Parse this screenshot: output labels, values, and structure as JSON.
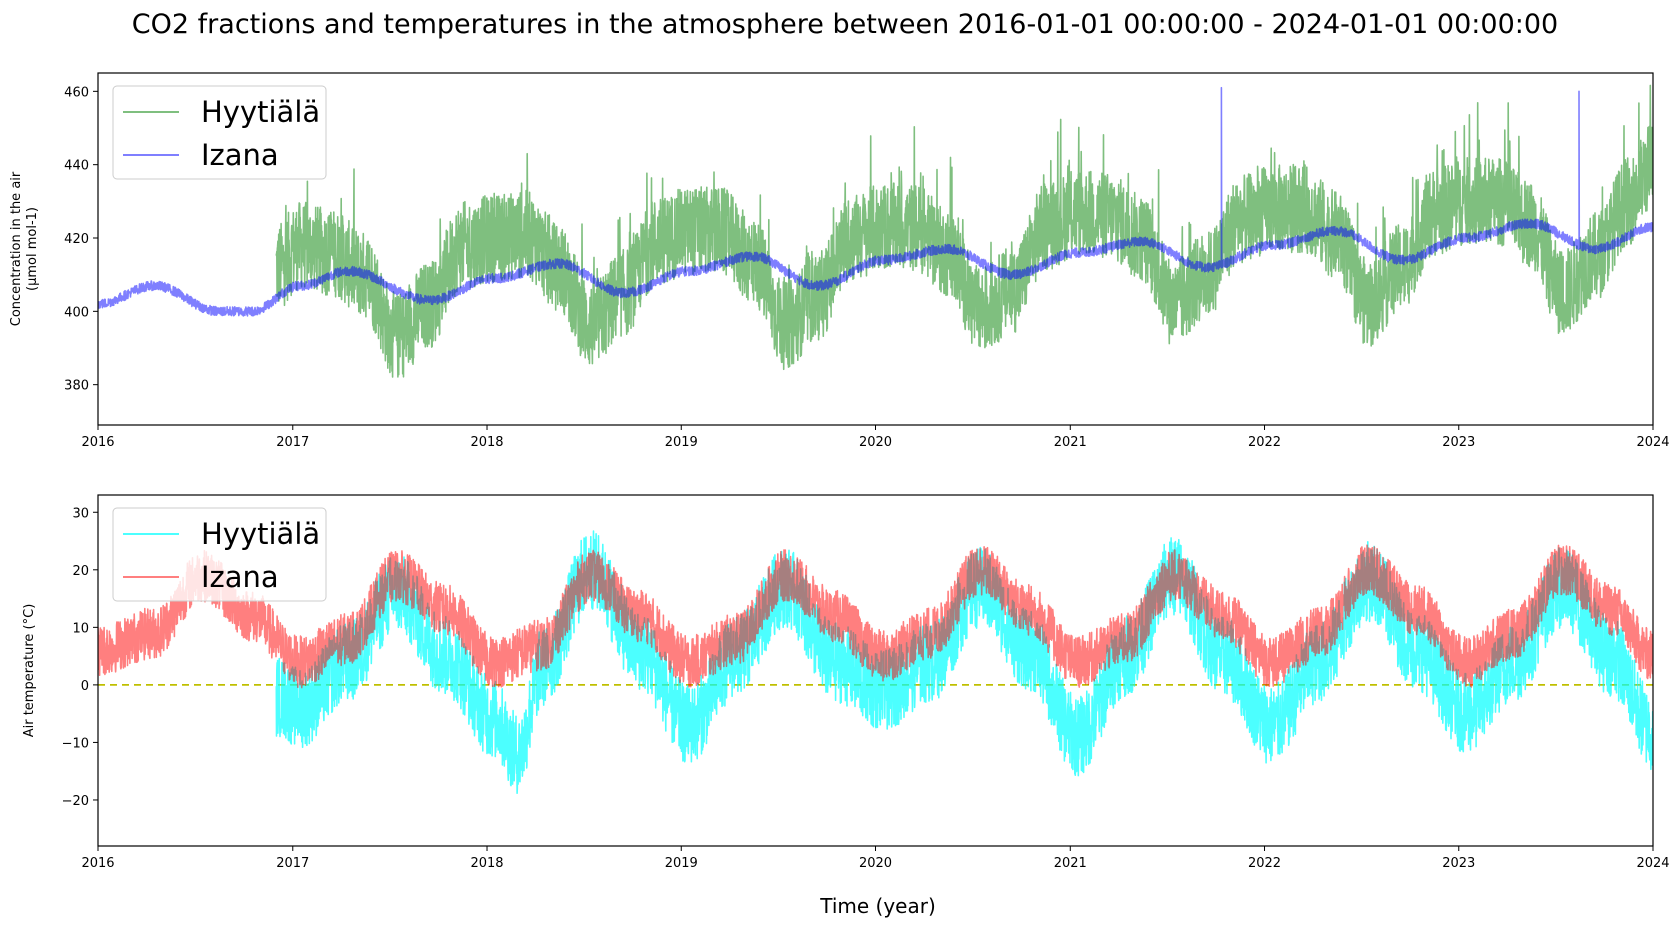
{
  "figure": {
    "title": "CO2 fractions and temperatures in the atmosphere between 2016-01-01 00:00:00 - 2024-01-01 00:00:00",
    "xlabel": "Time (year)"
  },
  "chart_data": [
    {
      "type": "line",
      "ylabel_line1": "Concentration in the air",
      "ylabel_line2": "(µmol mol-1)",
      "xlim": [
        "2016-01-01",
        "2024-01-01"
      ],
      "ylim": [
        369,
        465
      ],
      "x_ticks": [
        "2016",
        "2017",
        "2018",
        "2019",
        "2020",
        "2021",
        "2022",
        "2023",
        "2024"
      ],
      "y_ticks": [
        380,
        400,
        420,
        440,
        460
      ],
      "legend": "top-left",
      "grid": false,
      "series": [
        {
          "name": "Hyytiälä",
          "color": "#008000",
          "opacity": 0.5,
          "start": "2016-12-01",
          "end": "2024-01-01",
          "trend": {
            "2016-12-01": 411,
            "2024-01-01": 427
          },
          "seasonal": {
            "winter_anomaly": 7,
            "summer_anomaly": -17
          },
          "daily_range_max": 24,
          "data": [
            [
              "2016-12-01",
              412
            ],
            [
              "2017-01-15",
              418
            ],
            [
              "2017-03-15",
              416
            ],
            [
              "2017-05-15",
              410
            ],
            [
              "2017-07-15",
              393
            ],
            [
              "2017-09-15",
              402
            ],
            [
              "2017-11-15",
              418
            ],
            [
              "2018-01-15",
              420
            ],
            [
              "2018-03-15",
              421
            ],
            [
              "2018-05-15",
              412
            ],
            [
              "2018-07-15",
              396
            ],
            [
              "2018-09-15",
              405
            ],
            [
              "2018-11-15",
              419
            ],
            [
              "2019-01-15",
              422
            ],
            [
              "2019-03-15",
              422
            ],
            [
              "2019-05-15",
              414
            ],
            [
              "2019-07-15",
              396
            ],
            [
              "2019-09-15",
              404
            ],
            [
              "2019-11-15",
              420
            ],
            [
              "2020-01-15",
              423
            ],
            [
              "2020-03-15",
              423
            ],
            [
              "2020-05-15",
              416
            ],
            [
              "2020-07-15",
              400
            ],
            [
              "2020-09-15",
              406
            ],
            [
              "2020-11-15",
              423
            ],
            [
              "2021-01-15",
              427
            ],
            [
              "2021-03-15",
              426
            ],
            [
              "2021-05-15",
              420
            ],
            [
              "2021-07-15",
              402
            ],
            [
              "2021-09-15",
              410
            ],
            [
              "2021-11-15",
              425
            ],
            [
              "2022-01-15",
              428
            ],
            [
              "2022-03-15",
              428
            ],
            [
              "2022-05-15",
              421
            ],
            [
              "2022-07-15",
              402
            ],
            [
              "2022-09-15",
              412
            ],
            [
              "2022-11-15",
              427
            ],
            [
              "2023-01-15",
              430
            ],
            [
              "2023-03-15",
              430
            ],
            [
              "2023-05-15",
              424
            ],
            [
              "2023-07-15",
              405
            ],
            [
              "2023-09-15",
              415
            ],
            [
              "2023-11-15",
              430
            ],
            [
              "2024-01-01",
              440
            ]
          ]
        },
        {
          "name": "Izana",
          "color": "#0000ff",
          "opacity": 0.5,
          "start": "2016-01-01",
          "end": "2024-01-01",
          "trend": {
            "2016-01-01": 403,
            "2024-01-01": 421
          },
          "seasonal": {
            "spring_anomaly": 3.5,
            "autumn_anomaly": -3.5
          },
          "spikes": [
            [
              "2021-10-12",
              461
            ],
            [
              "2023-08-15",
              460
            ]
          ],
          "data": [
            [
              "2016-01-01",
              402
            ],
            [
              "2016-04-15",
              407
            ],
            [
              "2016-08-15",
              400
            ],
            [
              "2016-10-15",
              400
            ],
            [
              "2017-01-15",
              407
            ],
            [
              "2017-04-15",
              411
            ],
            [
              "2017-09-15",
              403
            ],
            [
              "2018-01-15",
              409
            ],
            [
              "2018-05-15",
              413
            ],
            [
              "2018-09-15",
              405
            ],
            [
              "2019-01-15",
              411
            ],
            [
              "2019-05-15",
              415
            ],
            [
              "2019-09-15",
              407
            ],
            [
              "2020-01-15",
              414
            ],
            [
              "2020-05-15",
              417
            ],
            [
              "2020-09-15",
              410
            ],
            [
              "2021-01-15",
              416
            ],
            [
              "2021-05-15",
              419
            ],
            [
              "2021-09-15",
              412
            ],
            [
              "2022-01-15",
              418
            ],
            [
              "2022-05-15",
              422
            ],
            [
              "2022-09-15",
              414
            ],
            [
              "2023-01-15",
              420
            ],
            [
              "2023-05-15",
              424
            ],
            [
              "2023-09-15",
              417
            ],
            [
              "2024-01-01",
              423
            ]
          ]
        }
      ]
    },
    {
      "type": "line",
      "ylabel_line1": "Air temperature (°C)",
      "ylabel_line2": "",
      "xlim": [
        "2016-01-01",
        "2024-01-01"
      ],
      "ylim": [
        -28,
        33
      ],
      "x_ticks": [
        "2016",
        "2017",
        "2018",
        "2019",
        "2020",
        "2021",
        "2022",
        "2023",
        "2024"
      ],
      "y_ticks": [
        -20,
        -10,
        0,
        10,
        20,
        30
      ],
      "legend": "top-left",
      "grid": false,
      "reference_line": {
        "y": 0,
        "color": "#bfbf00",
        "style": "dashed"
      },
      "series": [
        {
          "name": "Hyytiälä",
          "color": "#00ffff",
          "opacity": 0.7,
          "start": "2016-12-01",
          "end": "2024-01-01",
          "seasonal_range": {
            "winter_mean": -6,
            "summer_mean": 16
          },
          "daily_range_max": 14,
          "extremes": {
            "max": 30,
            "min": -23
          },
          "data": [
            [
              "2016-12-01",
              -2
            ],
            [
              "2017-01-15",
              -4
            ],
            [
              "2017-04-15",
              4
            ],
            [
              "2017-07-15",
              16
            ],
            [
              "2017-10-15",
              5
            ],
            [
              "2018-01-15",
              -6
            ],
            [
              "2018-02-28",
              -12
            ],
            [
              "2018-04-15",
              3
            ],
            [
              "2018-07-15",
              20
            ],
            [
              "2018-10-15",
              6
            ],
            [
              "2019-01-15",
              -7
            ],
            [
              "2019-04-15",
              5
            ],
            [
              "2019-07-15",
              17
            ],
            [
              "2019-10-15",
              4
            ],
            [
              "2020-01-15",
              -1
            ],
            [
              "2020-04-15",
              4
            ],
            [
              "2020-07-15",
              17
            ],
            [
              "2020-10-15",
              6
            ],
            [
              "2021-01-15",
              -9
            ],
            [
              "2021-04-15",
              5
            ],
            [
              "2021-07-15",
              19
            ],
            [
              "2021-10-15",
              5
            ],
            [
              "2022-01-15",
              -7
            ],
            [
              "2022-04-15",
              4
            ],
            [
              "2022-07-15",
              18
            ],
            [
              "2022-10-15",
              6
            ],
            [
              "2023-01-15",
              -5
            ],
            [
              "2023-04-15",
              4
            ],
            [
              "2023-07-15",
              17
            ],
            [
              "2023-10-15",
              5
            ],
            [
              "2024-01-01",
              -8
            ]
          ]
        },
        {
          "name": "Izana",
          "color": "#ff0000",
          "opacity": 0.5,
          "start": "2016-01-01",
          "end": "2024-01-01",
          "seasonal_range": {
            "winter_mean": 4,
            "summer_mean": 19
          },
          "daily_range_max": 9,
          "data": [
            [
              "2016-01-01",
              6
            ],
            [
              "2016-04-15",
              9
            ],
            [
              "2016-07-15",
              19
            ],
            [
              "2016-10-15",
              12
            ],
            [
              "2017-01-15",
              4
            ],
            [
              "2017-04-15",
              8
            ],
            [
              "2017-07-15",
              19
            ],
            [
              "2017-10-15",
              13
            ],
            [
              "2018-01-15",
              4
            ],
            [
              "2018-04-15",
              7
            ],
            [
              "2018-07-15",
              19
            ],
            [
              "2018-10-15",
              12
            ],
            [
              "2019-01-15",
              4
            ],
            [
              "2019-04-15",
              8
            ],
            [
              "2019-07-15",
              19
            ],
            [
              "2019-10-15",
              12
            ],
            [
              "2020-01-15",
              5
            ],
            [
              "2020-04-15",
              9
            ],
            [
              "2020-07-15",
              20
            ],
            [
              "2020-10-15",
              13
            ],
            [
              "2021-01-15",
              4
            ],
            [
              "2021-04-15",
              8
            ],
            [
              "2021-07-15",
              19
            ],
            [
              "2021-10-15",
              12
            ],
            [
              "2022-01-15",
              4
            ],
            [
              "2022-04-15",
              9
            ],
            [
              "2022-07-15",
              20
            ],
            [
              "2022-10-15",
              13
            ],
            [
              "2023-01-15",
              4
            ],
            [
              "2023-04-15",
              9
            ],
            [
              "2023-07-15",
              20
            ],
            [
              "2023-10-15",
              13
            ],
            [
              "2024-01-01",
              5
            ]
          ]
        }
      ]
    }
  ]
}
